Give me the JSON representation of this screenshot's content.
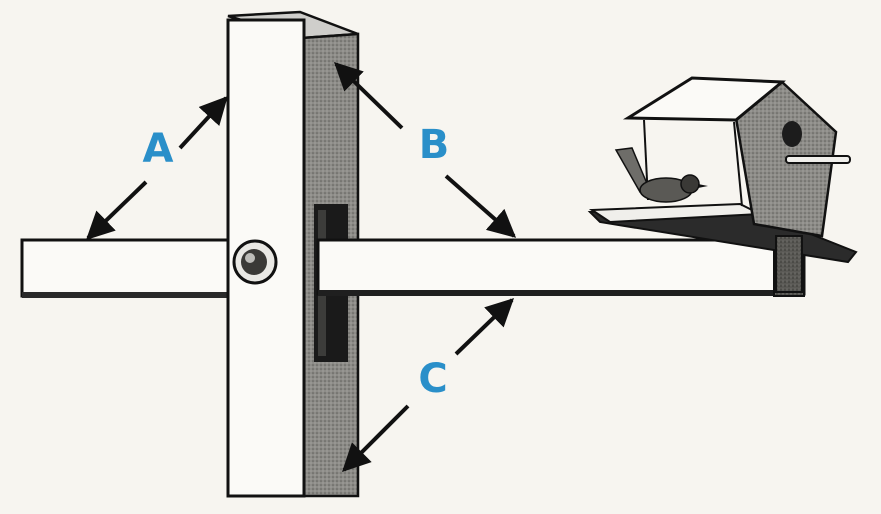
{
  "labels": {
    "a": "A",
    "b": "B",
    "c": "C"
  },
  "colors": {
    "label": "#2a8fc9",
    "ink": "#111111",
    "paper": "#f7f5f0",
    "face": "#fbfaf7",
    "shade": "#8a8a86",
    "dark": "#2a2a2a"
  }
}
